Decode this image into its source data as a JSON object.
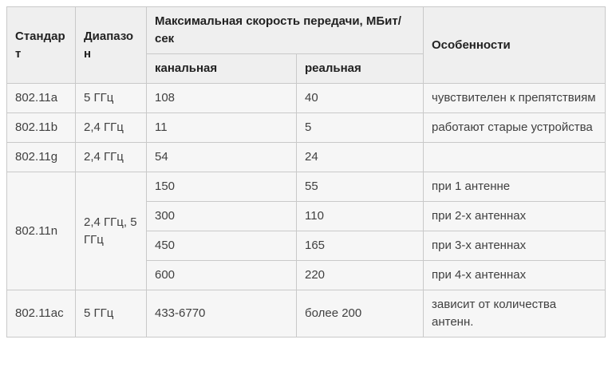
{
  "colors": {
    "header_bg": "#efefef",
    "cell_bg": "#f6f6f6",
    "border": "#c9c9c9",
    "outer_border": "#b0b0b0",
    "header_text": "#222222",
    "body_text": "#404040"
  },
  "table": {
    "headers": {
      "standard": "Стандарт",
      "band": "Диапазон",
      "speed_group": "Максимальная скорость передачи, МБит/сек",
      "speed_channel": "канальная",
      "speed_real": "реальная",
      "features": "Особенности"
    },
    "rows": [
      {
        "standard": "802.11a",
        "band": "5 ГГц",
        "channel": "108",
        "real": "40",
        "features": "чувствителен к препятствиям"
      },
      {
        "standard": "802.11b",
        "band": "2,4 ГГц",
        "channel": "11",
        "real": "5",
        "features": "работают старые устройства"
      },
      {
        "standard": "802.11g",
        "band": "2,4 ГГц",
        "channel": "54",
        "real": "24",
        "features": ""
      },
      {
        "standard": "802.11n",
        "band": "2,4 ГГц, 5 ГГц",
        "subrows": [
          {
            "channel": "150",
            "real": "55",
            "features": "при 1 антенне"
          },
          {
            "channel": "300",
            "real": "110",
            "features": "при 2-х антеннах"
          },
          {
            "channel": "450",
            "real": "165",
            "features": "при 3-х антеннах"
          },
          {
            "channel": "600",
            "real": "220",
            "features": "при 4-х антеннах"
          }
        ]
      },
      {
        "standard": "802.11ac",
        "band": "5 ГГц",
        "channel": "433-6770",
        "real": "более 200",
        "features": "зависит от количества антенн."
      }
    ]
  }
}
